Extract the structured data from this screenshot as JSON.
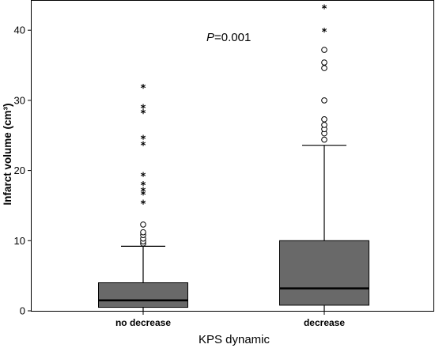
{
  "chart_data": {
    "type": "box",
    "xlabel": "KPS dynamic",
    "ylabel": "Infarct volume (cm³)",
    "ylim": [
      0,
      44
    ],
    "yticks": [
      0,
      10,
      20,
      30,
      40
    ],
    "grid": false,
    "annotation": {
      "italic": "P",
      "text": "=0.001"
    },
    "box_color": "#696969",
    "categories": [
      "no decrease",
      "decrease"
    ],
    "boxes": [
      {
        "category": "no decrease",
        "whisker_low": 0,
        "q1": 0.5,
        "median": 1.5,
        "q3": 4.0,
        "whisker_high": 9.2,
        "outliers_circle": [
          9.6,
          9.9,
          10.3,
          10.8,
          11.2,
          12.3
        ],
        "outliers_star": [
          15.3,
          16.6,
          17.1,
          17.9,
          19.2,
          23.6,
          24.5,
          28.2,
          28.9,
          31.8
        ]
      },
      {
        "category": "decrease",
        "whisker_low": 0,
        "q1": 0.8,
        "median": 3.2,
        "q3": 10.0,
        "whisker_high": 23.6,
        "outliers_circle": [
          24.4,
          25.3,
          25.9,
          26.5,
          27.3,
          30.0,
          34.6,
          35.4,
          37.2
        ],
        "outliers_star": [
          39.8,
          43.1
        ]
      }
    ]
  }
}
